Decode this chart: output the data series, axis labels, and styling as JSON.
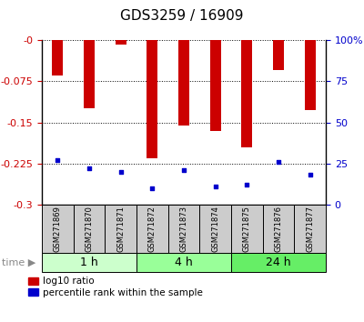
{
  "title": "GDS3259 / 16909",
  "samples": [
    "GSM271869",
    "GSM271870",
    "GSM271871",
    "GSM271872",
    "GSM271873",
    "GSM271874",
    "GSM271875",
    "GSM271876",
    "GSM271877"
  ],
  "log10_ratio": [
    -0.065,
    -0.125,
    -0.008,
    -0.215,
    -0.155,
    -0.165,
    -0.195,
    -0.055,
    -0.128
  ],
  "percentile_rank": [
    27,
    22,
    20,
    10,
    21,
    11,
    12,
    26,
    18
  ],
  "ylim_left": [
    -0.3,
    0.0
  ],
  "yticks_left": [
    -0.3,
    -0.225,
    -0.15,
    -0.075,
    0.0
  ],
  "ylim_right": [
    0,
    100
  ],
  "yticks_right": [
    0,
    25,
    50,
    75,
    100
  ],
  "bar_color": "#cc0000",
  "percentile_color": "#0000cc",
  "bar_width": 0.35,
  "groups": [
    {
      "label": "1 h",
      "color": "#ccffcc"
    },
    {
      "label": "4 h",
      "color": "#99ff99"
    },
    {
      "label": "24 h",
      "color": "#66ee66"
    }
  ],
  "group_ranges": [
    [
      0,
      2
    ],
    [
      3,
      5
    ],
    [
      6,
      8
    ]
  ],
  "legend_ratio_label": "log10 ratio",
  "legend_percentile_label": "percentile rank within the sample",
  "label_area_color": "#cccccc",
  "tick_label_color_left": "#cc0000",
  "tick_label_color_right": "#0000cc",
  "title_fontsize": 11,
  "tick_fontsize": 8,
  "sample_fontsize": 6,
  "group_fontsize": 9,
  "legend_fontsize": 7.5
}
